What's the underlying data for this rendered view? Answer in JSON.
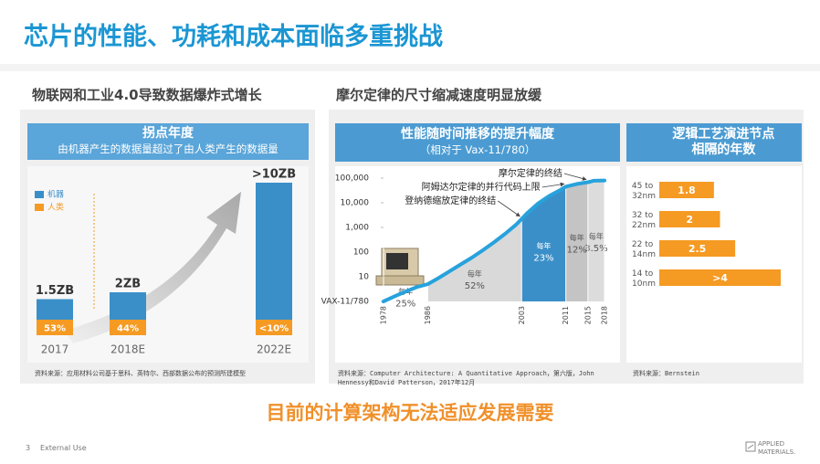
{
  "title": "芯片的性能、功耗和成本面临多重挑战",
  "sections": [
    "物联网和工业4.0导致数据爆炸式增长",
    "摩尔定律的尺寸缩减速度明显放缓"
  ],
  "conclusion": "目前的计算架构无法适应发展需要",
  "footer": {
    "page": "3",
    "classification": "External Use",
    "logo": [
      "APPLIED",
      "MATERIALS."
    ]
  },
  "chart_data": [
    {
      "type": "bar",
      "title": "拐点年度",
      "subtitle": "由机器产生的数据量超过了由人类产生的数据量",
      "categories": [
        "2017",
        "2018E",
        "2022E"
      ],
      "series": [
        {
          "name": "机器",
          "color": "#3b8fc9",
          "values": [
            1.5,
            2,
            10
          ],
          "value_labels": [
            "1.5ZB",
            "2ZB",
            ">10ZB"
          ]
        },
        {
          "name": "人类",
          "color": "#f59a23",
          "values": [
            53,
            44,
            10
          ],
          "value_labels": [
            "53%",
            "44%",
            "<10%"
          ]
        }
      ],
      "source": "资料来源：应用材料公司基于思科、英特尔、西部数据公布的预测所建模型"
    },
    {
      "type": "line",
      "title": "性能随时间推移的提升幅度",
      "subtitle": "（相对于 Vax-11/780）",
      "log_y": true,
      "color": "#27a2dc",
      "x": [
        1978,
        1980,
        1982,
        1984,
        1986,
        1988,
        1990,
        1992,
        1994,
        1996,
        1998,
        2000,
        2002,
        2003,
        2004,
        2006,
        2008,
        2010,
        2011,
        2013,
        2015,
        2016,
        2018
      ],
      "values": [
        1,
        1.6,
        2.5,
        3.8,
        5,
        9,
        17,
        32,
        60,
        120,
        250,
        550,
        1300,
        2200,
        3800,
        9500,
        19000,
        33000,
        45000,
        58000,
        68000,
        78000,
        80000
      ],
      "xlim": [
        1978,
        2018
      ],
      "xticks": [
        1978,
        1986,
        2003,
        2011,
        2015,
        2018
      ],
      "ylim": [
        1,
        100000
      ],
      "yticks": [
        {
          "value": 1,
          "label": "VAX-11/780"
        },
        10,
        100,
        {
          "value": 1000,
          "label": "1,000"
        },
        {
          "value": 10000,
          "label": "10,000"
        },
        {
          "value": 100000,
          "label": "100,000"
        }
      ],
      "regions": [
        {
          "x0": 1978,
          "x1": 1986,
          "label": "每年",
          "rate": "25%",
          "color": "transparent"
        },
        {
          "x0": 1986,
          "x1": 2003,
          "label": "每年",
          "rate": "52%",
          "color": "#d9d9d9"
        },
        {
          "x0": 2003,
          "x1": 2011,
          "label": "每年",
          "rate": "23%",
          "color": "#3b8fc9"
        },
        {
          "x0": 2011,
          "x1": 2015,
          "label": "每年",
          "rate": "12%",
          "color": "#c4c4c4"
        },
        {
          "x0": 2015,
          "x1": 2018,
          "label": "每年",
          "rate": "3.5%",
          "color": "#dcdcdc"
        }
      ],
      "annotations": [
        {
          "text": "登纳德缩放定律的终结",
          "x": 2003
        },
        {
          "text": "阿姆达尔定律的并行代码上限",
          "x": 2011
        },
        {
          "text": "摩尔定律的终结",
          "x": 2015
        }
      ],
      "source": "资料来源：Computer Architecture: A Quantitative Approach，第六版，John Hennessy和David Patterson，2017年12月"
    },
    {
      "type": "hbar",
      "title": "逻辑工艺演进节点相隔的年数",
      "categories": [
        "45 to 32nm",
        "32 to 22nm",
        "22 to 14nm",
        "14 to 10nm"
      ],
      "values": [
        1.8,
        2,
        2.5,
        4
      ],
      "value_labels": [
        "1.8",
        "2",
        "2.5",
        ">4"
      ],
      "color": "#f59a23",
      "source": "资料来源：Bernstein"
    }
  ]
}
